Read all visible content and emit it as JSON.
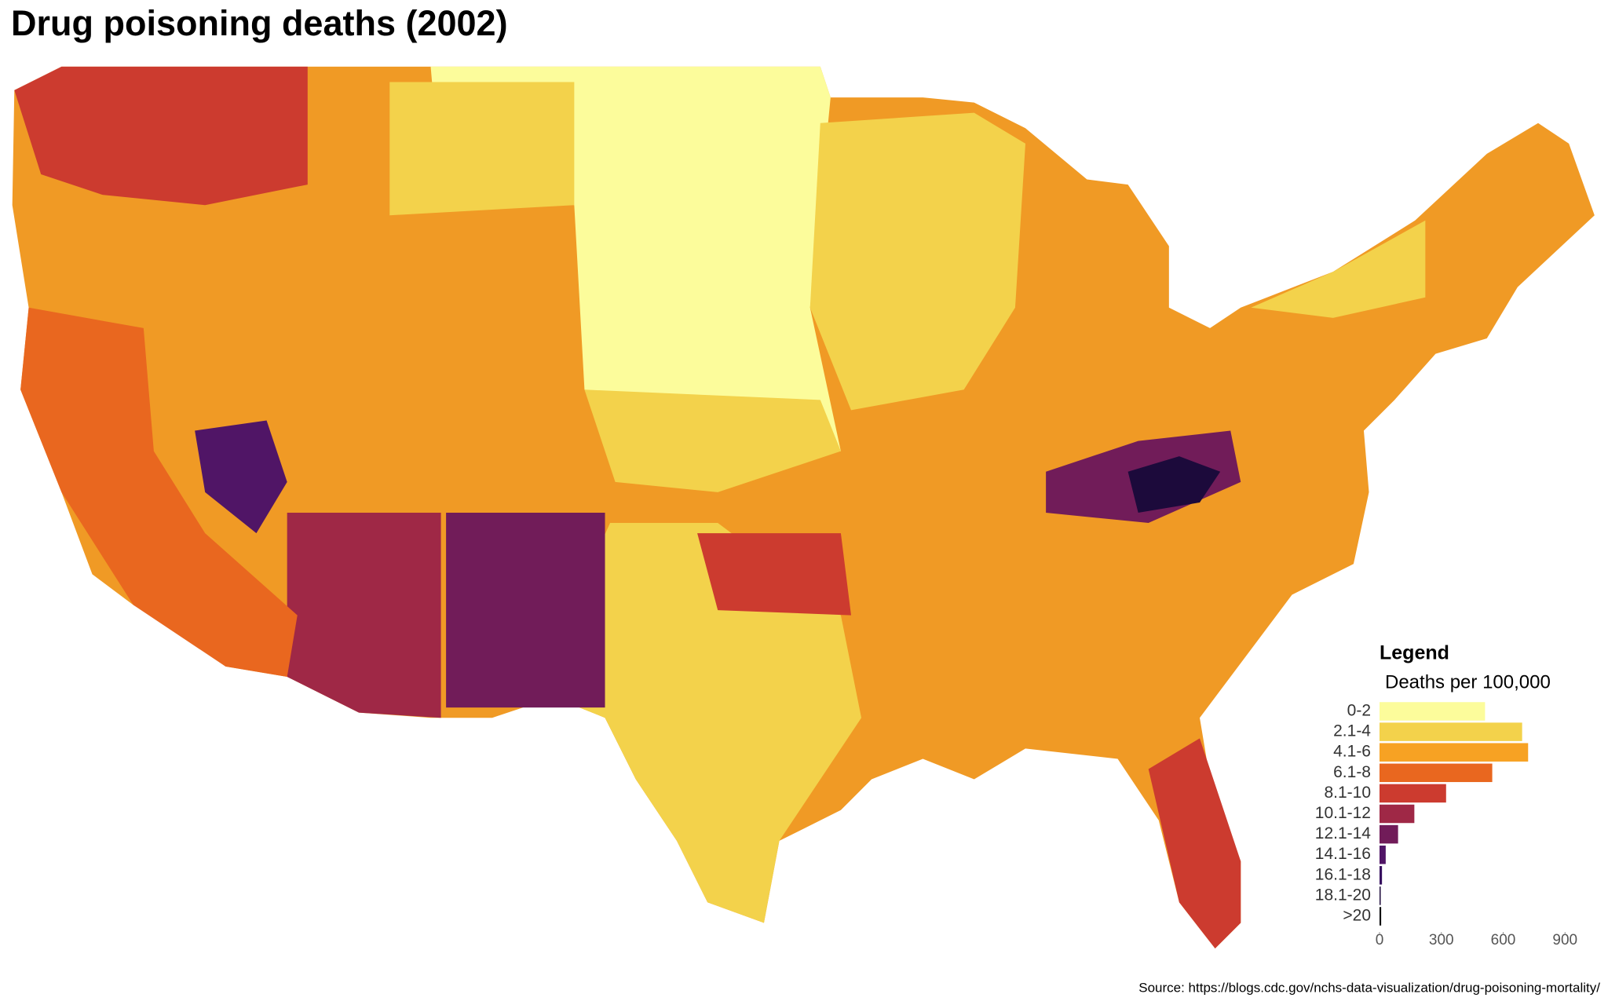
{
  "title": "Drug poisoning deaths (2002)",
  "source": "Source: https://blogs.cdc.gov/nchs-data-visualization/drug-poisoning-mortality/",
  "chart_data": {
    "type": "hbar",
    "title": "Legend",
    "subtitle": "Deaths per 100,000",
    "categories": [
      "0-2",
      "2.1-4",
      "4.1-6",
      "6.1-8",
      "8.1-10",
      "10.1-12",
      "12.1-14",
      "14.1-16",
      "16.1-18",
      "18.1-20",
      ">20"
    ],
    "values": [
      512,
      692,
      721,
      547,
      323,
      169,
      90,
      30,
      12,
      5,
      8
    ],
    "colors": [
      "#fcfc9b",
      "#f3d24b",
      "#f7a223",
      "#e9671f",
      "#cc3b2f",
      "#9f2846",
      "#711c59",
      "#501566",
      "#360e5f",
      "#1c0a3b",
      "#000004"
    ],
    "xlim": [
      0,
      960
    ],
    "xticks": [
      0,
      300,
      600,
      900
    ]
  }
}
